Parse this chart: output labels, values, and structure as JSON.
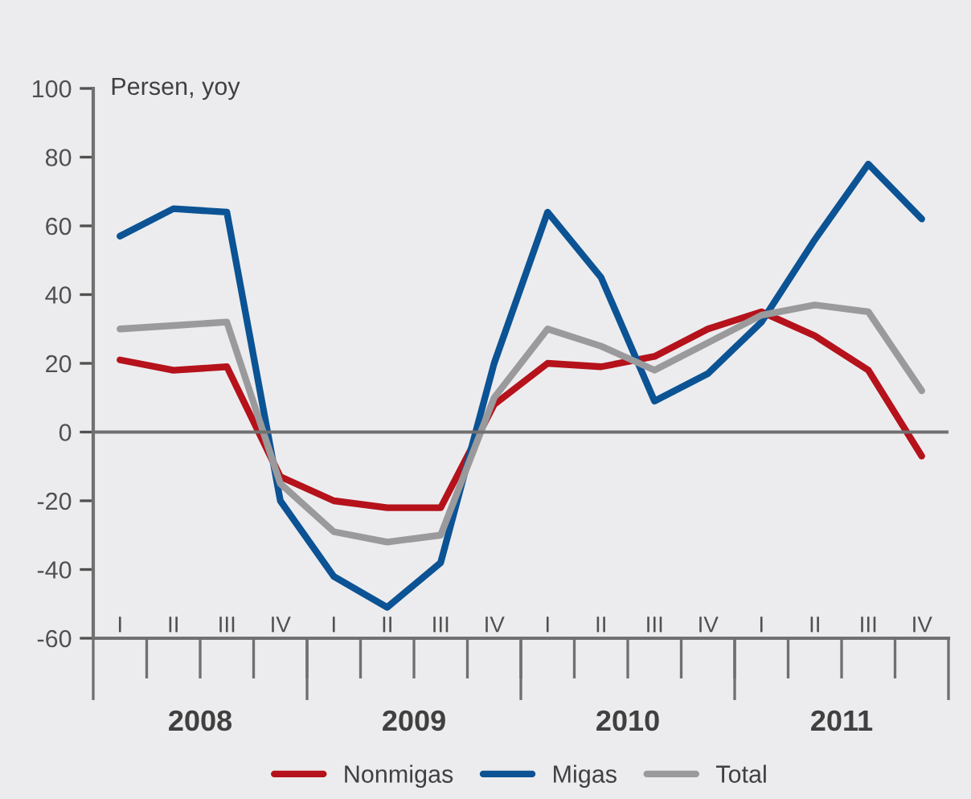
{
  "chart_data": {
    "type": "line",
    "ylabel": "Persen, yoy",
    "categories": [
      "I",
      "II",
      "III",
      "IV",
      "I",
      "II",
      "III",
      "IV",
      "I",
      "II",
      "III",
      "IV",
      "I",
      "II",
      "III",
      "IV"
    ],
    "annotations": [
      "2008",
      "2009",
      "2010",
      "2011"
    ],
    "series": [
      {
        "name": "Nonmigas",
        "color": "#b5121b",
        "values": [
          21,
          18,
          19,
          -13,
          -20,
          -22,
          -22,
          8,
          20,
          19,
          22,
          30,
          35,
          28,
          18,
          -7
        ]
      },
      {
        "name": "Migas",
        "color": "#0b5394",
        "values": [
          57,
          65,
          64,
          -20,
          -42,
          -51,
          -38,
          20,
          64,
          45,
          9,
          17,
          32,
          56,
          78,
          62
        ]
      },
      {
        "name": "Total",
        "color": "#9a9a9c",
        "values": [
          30,
          31,
          32,
          -15,
          -29,
          -32,
          -30,
          10,
          30,
          25,
          18,
          26,
          34,
          37,
          35,
          12
        ]
      }
    ],
    "ylim": [
      -60,
      100
    ],
    "yticks": [
      -60,
      -40,
      -20,
      0,
      20,
      40,
      60,
      80,
      100
    ],
    "ref_lines": [
      {
        "axis": "y",
        "value": 0,
        "color": "#707070"
      }
    ],
    "legend": "bottom",
    "grid": false
  }
}
